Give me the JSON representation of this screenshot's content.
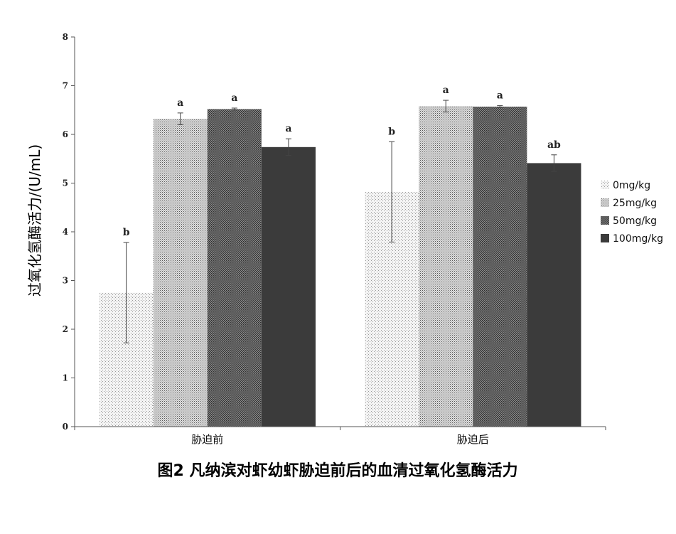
{
  "chart_data": {
    "type": "bar",
    "ylabel": "过氧化氢酶活力/(U/mL)",
    "caption": "图2 凡纳滨对虾幼虾胁迫前后的血清过氧化氢酶活力",
    "categories": [
      "胁迫前",
      "胁迫后"
    ],
    "ylim": [
      0,
      8
    ],
    "yticks": [
      "0",
      "1",
      "2",
      "3",
      "4",
      "5",
      "6",
      "7",
      "8"
    ],
    "legend_position": "right",
    "series": [
      {
        "name": "0mg/kg",
        "values": [
          2.75,
          4.82
        ],
        "errors": [
          1.03,
          1.03
        ],
        "labels": [
          "b",
          "b"
        ],
        "pattern": "light-dots",
        "color": "#d8d8d8"
      },
      {
        "name": "25mg/kg",
        "values": [
          6.32,
          6.58
        ],
        "errors": [
          0.12,
          0.12
        ],
        "labels": [
          "a",
          "a"
        ],
        "pattern": "medium-dots",
        "color": "#a8a8a8"
      },
      {
        "name": "50mg/kg",
        "values": [
          6.52,
          6.57
        ],
        "errors": [
          0.02,
          0.02
        ],
        "labels": [
          "a",
          "a"
        ],
        "pattern": "dense-dots",
        "color": "#6a6a6a"
      },
      {
        "name": "100mg/kg",
        "values": [
          5.74,
          5.41
        ],
        "errors": [
          0.17,
          0.17
        ],
        "labels": [
          "a",
          "ab"
        ],
        "pattern": "solid",
        "color": "#3b3b3b"
      }
    ]
  }
}
